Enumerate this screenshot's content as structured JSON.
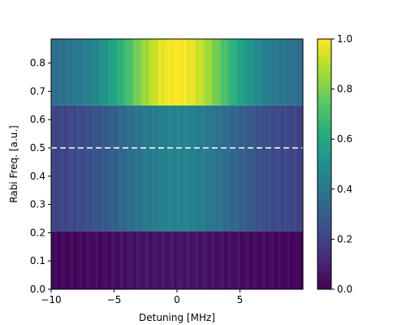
{
  "chart_data": {
    "type": "heatmap",
    "title": "",
    "xlabel": "Detuning [MHz]",
    "ylabel": "Rabi Freq. [a.u.]",
    "xlim": [
      -10,
      10
    ],
    "ylim": [
      0,
      0.885
    ],
    "x_ticks": [
      -10,
      -5,
      0,
      5
    ],
    "x_tick_labels": [
      "−10",
      "−5",
      "0",
      "5"
    ],
    "y_ticks": [
      0.0,
      0.1,
      0.2,
      0.3,
      0.4,
      0.5,
      0.6,
      0.7,
      0.8
    ],
    "y_tick_labels": [
      "0.0",
      "0.1",
      "0.2",
      "0.3",
      "0.4",
      "0.5",
      "0.6",
      "0.7",
      "0.8"
    ],
    "colormap": "viridis",
    "color_range": [
      0,
      1
    ],
    "colorbar_ticks": [
      0.0,
      0.2,
      0.4,
      0.6,
      0.8,
      1.0
    ],
    "colorbar_tick_labels": [
      "0.0",
      "0.2",
      "0.4",
      "0.6",
      "0.8",
      "1.0"
    ],
    "bands": [
      {
        "y_range": [
          0.0,
          0.205
        ],
        "peak_value": 0.06,
        "width_mhz": 5
      },
      {
        "y_range": [
          0.205,
          0.65
        ],
        "peak_value": 0.45,
        "width_mhz": 4
      },
      {
        "y_range": [
          0.65,
          0.885
        ],
        "peak_value": 1.0,
        "width_mhz": 3.5
      }
    ],
    "baseline_value": 0.35,
    "reference_line": {
      "y": 0.5,
      "style": "dashed",
      "color": "#ffffff"
    }
  }
}
